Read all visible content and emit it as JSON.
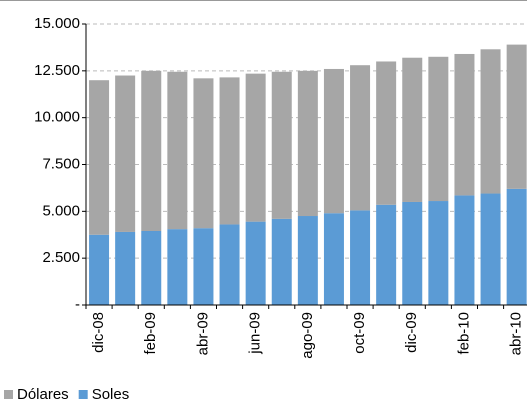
{
  "chart_data": {
    "type": "stacked_bar",
    "categories": [
      "dic-08",
      null,
      "feb-09",
      null,
      "abr-09",
      null,
      "jun-09",
      null,
      "ago-09",
      null,
      "oct-09",
      null,
      "dic-09",
      null,
      "feb-10",
      null,
      "abr-10"
    ],
    "series": [
      {
        "name": "Soles",
        "color": "#5b9bd5",
        "values": [
          3750,
          3900,
          3950,
          4050,
          4100,
          4300,
          4450,
          4600,
          4750,
          4900,
          5050,
          5350,
          5500,
          5550,
          5850,
          5950,
          6200
        ]
      },
      {
        "name": "Dólares",
        "color": "#a6a6a6",
        "values": [
          8250,
          8350,
          8550,
          8400,
          8000,
          7850,
          7900,
          7850,
          7750,
          7700,
          7750,
          7650,
          7700,
          7700,
          7550,
          7700,
          7700
        ]
      }
    ],
    "ylim": [
      0,
      15000
    ],
    "yticks": [
      {
        "value": 0,
        "label": "-"
      },
      {
        "value": 2500,
        "label": "2.500"
      },
      {
        "value": 5000,
        "label": "5.000"
      },
      {
        "value": 7500,
        "label": "7.500"
      },
      {
        "value": 10000,
        "label": "10.000"
      },
      {
        "value": 12500,
        "label": "12.500"
      },
      {
        "value": 15000,
        "label": "15.000"
      }
    ],
    "grid": true,
    "legend_order": [
      "Dólares",
      "Soles"
    ]
  }
}
